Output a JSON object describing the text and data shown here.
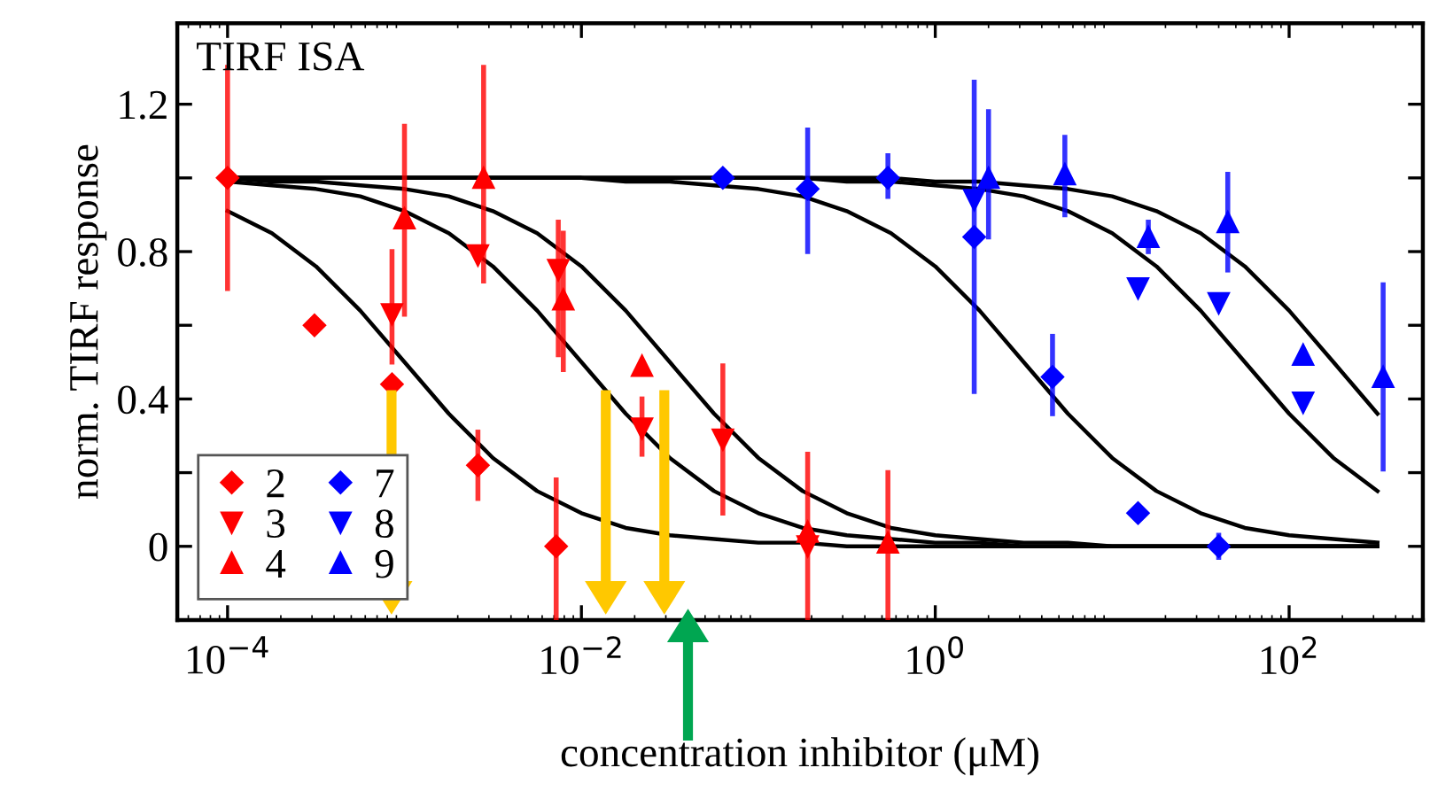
{
  "chart_data": {
    "type": "scatter",
    "title": "TIRF ISA",
    "xlabel": "concentration inhibitor (μM)",
    "ylabel": "norm. TIRF response",
    "log": "x",
    "xlim": [
      5.2e-05,
      570
    ],
    "xticks": [
      {
        "value": 0.0001,
        "label": "10$^{−4}$"
      },
      {
        "value": 0.01,
        "label": "10$^{−2}$"
      },
      {
        "value": 1,
        "label": "10$^{0}$"
      },
      {
        "value": 100,
        "label": "10$^{2}$"
      }
    ],
    "ylim": [
      -0.2,
      1.42
    ],
    "yticks": [
      0,
      {
        "value": 0.2,
        "label": null
      },
      0.4,
      {
        "value": 0.6,
        "label": null
      },
      0.8,
      {
        "value": 1.0,
        "label": null
      },
      1.2
    ],
    "grid": false,
    "legend": "bottom left",
    "series": [
      {
        "name": "2",
        "color": "#ff0000",
        "marker": "diamond",
        "x": [
          0.0001,
          0.00031,
          0.00085,
          0.0026,
          0.0072
        ],
        "values": [
          1.0,
          0.6,
          0.44,
          0.22,
          0.0
        ],
        "errors": [
          [
            0.7,
            1.3
          ],
          null,
          null,
          [
            0.13,
            0.31
          ],
          [
            -0.2,
            0.18
          ]
        ]
      },
      {
        "name": "3",
        "color": "#ff0000",
        "marker": "triangle_down",
        "x": [
          0.00085,
          0.0026,
          0.0074,
          0.022,
          0.063,
          0.19
        ],
        "values": [
          0.63,
          0.79,
          0.75,
          0.32,
          0.29,
          0.0
        ],
        "errors": [
          [
            0.5,
            0.8
          ],
          null,
          [
            0.52,
            0.88
          ],
          [
            0.25,
            0.4
          ],
          [
            0.09,
            0.49
          ],
          [
            -0.2,
            0.25
          ]
        ]
      },
      {
        "name": "4",
        "color": "#ff0000",
        "marker": "triangle",
        "x": [
          0.001,
          0.0028,
          0.0079,
          0.022,
          0.19,
          0.54
        ],
        "values": [
          0.89,
          1.0,
          0.67,
          0.49,
          0.04,
          0.01
        ],
        "errors": [
          [
            0.63,
            1.14
          ],
          [
            0.72,
            1.3
          ],
          [
            0.48,
            0.85
          ],
          null,
          null,
          [
            -0.2,
            0.2
          ]
        ]
      },
      {
        "name": "7",
        "color": "#0000ff",
        "marker": "diamond",
        "x": [
          0.063,
          0.19,
          0.54,
          1.66,
          4.6,
          14,
          40
        ],
        "values": [
          1.0,
          0.97,
          1.0,
          0.84,
          0.46,
          0.09,
          0.0
        ],
        "errors": [
          null,
          [
            0.8,
            1.13
          ],
          [
            0.95,
            1.06
          ],
          [
            0.42,
            1.26
          ],
          [
            0.36,
            0.57
          ],
          null,
          [
            -0.03,
            0.03
          ]
        ]
      },
      {
        "name": "8",
        "color": "#0000ff",
        "marker": "triangle_down",
        "x": [
          1.66,
          14,
          40,
          120
        ],
        "values": [
          0.94,
          0.7,
          0.66,
          0.39
        ]
      },
      {
        "name": "9",
        "color": "#0000ff",
        "marker": "triangle",
        "x": [
          2.0,
          5.4,
          16,
          45,
          120,
          340
        ],
        "values": [
          1.0,
          1.01,
          0.84,
          0.88,
          0.52,
          0.46
        ],
        "errors": [
          [
            0.84,
            1.18
          ],
          [
            0.9,
            1.11
          ],
          [
            0.8,
            0.88
          ],
          [
            0.75,
            1.01
          ],
          null,
          [
            0.21,
            0.71
          ]
        ]
      },
      {
        "type": "line",
        "color": "#000000",
        "x": [
          0.0001,
          0.000178,
          0.000316,
          0.000562,
          0.001,
          0.00178,
          0.00316,
          0.00562,
          0.01,
          0.0178,
          0.0316,
          0.0562,
          0.1,
          0.178,
          0.316,
          0.562,
          1,
          1.78,
          3.16,
          5.62,
          10,
          17.8,
          31.6,
          56.2,
          100,
          178,
          316
        ],
        "values": [
          0.91,
          0.85,
          0.76,
          0.64,
          0.5,
          0.36,
          0.24,
          0.15,
          0.09,
          0.05,
          0.03,
          0.02,
          0.01,
          0.01,
          0,
          0,
          0,
          0,
          0,
          0,
          0,
          0,
          0,
          0,
          0,
          0,
          0
        ]
      },
      {
        "type": "line",
        "color": "#000000",
        "x": [
          0.0001,
          0.000178,
          0.000316,
          0.000562,
          0.001,
          0.00178,
          0.00316,
          0.00562,
          0.01,
          0.0178,
          0.0316,
          0.0562,
          0.1,
          0.178,
          0.316,
          0.562,
          1,
          1.78,
          3.16,
          5.62,
          10,
          17.8,
          31.6,
          56.2,
          100,
          178,
          316
        ],
        "values": [
          0.99,
          0.98,
          0.97,
          0.95,
          0.91,
          0.85,
          0.76,
          0.64,
          0.5,
          0.36,
          0.24,
          0.15,
          0.09,
          0.05,
          0.03,
          0.02,
          0.01,
          0.01,
          0,
          0,
          0,
          0,
          0,
          0,
          0,
          0,
          0
        ]
      },
      {
        "type": "line",
        "color": "#000000",
        "x": [
          0.0001,
          0.000178,
          0.000316,
          0.000562,
          0.001,
          0.00178,
          0.00316,
          0.00562,
          0.01,
          0.0178,
          0.0316,
          0.0562,
          0.1,
          0.178,
          0.316,
          0.562,
          1,
          1.78,
          3.16,
          5.62,
          10,
          17.8,
          31.6,
          56.2,
          100,
          178,
          316
        ],
        "values": [
          1.0,
          0.99,
          0.99,
          0.98,
          0.97,
          0.95,
          0.91,
          0.85,
          0.76,
          0.64,
          0.5,
          0.36,
          0.24,
          0.15,
          0.09,
          0.05,
          0.03,
          0.02,
          0.01,
          0.01,
          0,
          0,
          0,
          0,
          0,
          0,
          0
        ]
      },
      {
        "type": "line",
        "color": "#000000",
        "x": [
          0.0001,
          0.000178,
          0.000316,
          0.000562,
          0.001,
          0.00178,
          0.00316,
          0.00562,
          0.01,
          0.0178,
          0.0316,
          0.0562,
          0.1,
          0.178,
          0.316,
          0.562,
          1,
          1.78,
          3.16,
          5.62,
          10,
          17.8,
          31.6,
          56.2,
          100,
          178,
          316
        ],
        "values": [
          1.0,
          1.0,
          1.0,
          1.0,
          1.0,
          1.0,
          1.0,
          1.0,
          1.0,
          0.99,
          0.99,
          0.98,
          0.97,
          0.95,
          0.91,
          0.85,
          0.76,
          0.64,
          0.5,
          0.36,
          0.24,
          0.15,
          0.09,
          0.05,
          0.03,
          0.02,
          0.01
        ]
      },
      {
        "type": "line",
        "color": "#000000",
        "x": [
          0.0001,
          0.000178,
          0.000316,
          0.000562,
          0.001,
          0.00178,
          0.00316,
          0.00562,
          0.01,
          0.0178,
          0.0316,
          0.0562,
          0.1,
          0.178,
          0.316,
          0.562,
          1,
          1.78,
          3.16,
          5.62,
          10,
          17.8,
          31.6,
          56.2,
          100,
          178,
          316
        ],
        "values": [
          1.0,
          1.0,
          1.0,
          1.0,
          1.0,
          1.0,
          1.0,
          1.0,
          1.0,
          1.0,
          1.0,
          1.0,
          1.0,
          1.0,
          0.99,
          0.99,
          0.98,
          0.97,
          0.95,
          0.91,
          0.85,
          0.76,
          0.64,
          0.5,
          0.36,
          0.24,
          0.15
        ]
      },
      {
        "type": "line",
        "color": "#000000",
        "x": [
          0.0001,
          0.000178,
          0.000316,
          0.000562,
          0.001,
          0.00178,
          0.00316,
          0.00562,
          0.01,
          0.0178,
          0.0316,
          0.0562,
          0.1,
          0.178,
          0.316,
          0.562,
          1,
          1.78,
          3.16,
          5.62,
          10,
          17.8,
          31.6,
          56.2,
          100,
          178,
          316
        ],
        "values": [
          1.0,
          1.0,
          1.0,
          1.0,
          1.0,
          1.0,
          1.0,
          1.0,
          1.0,
          1.0,
          1.0,
          1.0,
          1.0,
          1.0,
          1.0,
          1.0,
          0.99,
          0.99,
          0.98,
          0.97,
          0.95,
          0.91,
          0.85,
          0.76,
          0.64,
          0.5,
          0.36
        ]
      }
    ]
  }
}
